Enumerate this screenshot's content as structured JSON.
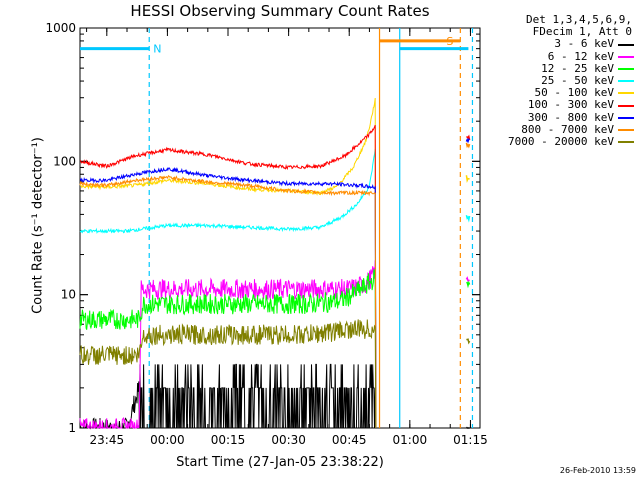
{
  "chart_data": {
    "type": "line",
    "title": "HESSI Observing Summary Count Rates",
    "xlabel": "Start Time (27-Jan-05 23:38:22)",
    "ylabel": "Count Rate (s⁻¹ detector⁻¹)",
    "y_scale": "log",
    "ylim": [
      1,
      1000
    ],
    "xlim_minutes_from_start": [
      0,
      99
    ],
    "y_tick_labels": [
      "1",
      "10",
      "100",
      "1000"
    ],
    "x_tick_labels": [
      "23:45",
      "00:00",
      "00:15",
      "00:30",
      "00:45",
      "01:00",
      "01:15"
    ],
    "legend_header": [
      "Det 1,3,4,5,6,9,",
      "FDecim 1, Att 0"
    ],
    "flags": [
      {
        "label": "N",
        "color": "#00c8ff",
        "start": "23:38:22",
        "end": "23:55:30",
        "level": 700
      },
      {
        "label": "S",
        "color": "#ff8c00",
        "start": "00:52:30",
        "end": "01:12:30",
        "level": 800
      }
    ],
    "vlines": [
      {
        "time": "23:55:30",
        "color": "#00c8ff",
        "style": "dashed"
      },
      {
        "time": "00:52:30",
        "color": "#ff8c00",
        "style": "solid"
      },
      {
        "time": "00:57:30",
        "color": "#00c8ff",
        "style": "solid"
      },
      {
        "time": "01:12:30",
        "color": "#ff8c00",
        "style": "dashed"
      },
      {
        "time": "01:15:30",
        "color": "#00c8ff",
        "style": "dashed"
      }
    ],
    "series": [
      {
        "name": "3 - 6 keV",
        "color": "#000000",
        "times": [
          "23:38:22",
          "23:50",
          "23:53",
          "00:05",
          "00:20",
          "00:35",
          "00:47",
          "00:50",
          "00:51",
          "00:51:30"
        ],
        "values": [
          1,
          1,
          2,
          2,
          2,
          2,
          2,
          2,
          2.5,
          4
        ],
        "after_times": [
          "01:14",
          "01:15"
        ],
        "after_values": [
          1,
          1
        ]
      },
      {
        "name": "6 - 12 keV",
        "color": "#ff00ff",
        "times": [
          "23:38:22",
          "23:53",
          "23:53:30",
          "00:05",
          "00:20",
          "00:35",
          "00:45",
          "00:49",
          "00:51",
          "00:51:30"
        ],
        "values": [
          1,
          1,
          11,
          11,
          11,
          11,
          11,
          12,
          14,
          16
        ],
        "after_times": [
          "01:14",
          "01:15"
        ],
        "after_values": [
          13,
          13
        ]
      },
      {
        "name": "12 - 25 keV",
        "color": "#00ff00",
        "times": [
          "23:38:22",
          "23:45",
          "23:53",
          "23:54",
          "00:05",
          "00:20",
          "00:35",
          "00:43",
          "00:48",
          "00:51",
          "00:51:30"
        ],
        "values": [
          6.5,
          6.5,
          6.5,
          8.5,
          8.5,
          8.5,
          8.5,
          9,
          11,
          13,
          14
        ],
        "after_times": [
          "01:14",
          "01:15"
        ],
        "after_values": [
          12,
          12
        ]
      },
      {
        "name": "25 - 50 keV",
        "color": "#00ffff",
        "times": [
          "23:38:22",
          "23:45",
          "23:50",
          "00:00",
          "00:10",
          "00:20",
          "00:30",
          "00:38",
          "00:43",
          "00:47",
          "00:50",
          "00:51",
          "00:51:30"
        ],
        "values": [
          30,
          30,
          30,
          33,
          33,
          32,
          31,
          32,
          38,
          48,
          65,
          100,
          130
        ],
        "after_times": [
          "01:14",
          "01:15"
        ],
        "after_values": [
          38,
          38
        ]
      },
      {
        "name": "50 - 100 keV",
        "color": "#ffd700",
        "times": [
          "23:38:22",
          "23:45",
          "23:52",
          "00:00",
          "00:10",
          "00:20",
          "00:30",
          "00:38",
          "00:42",
          "00:46",
          "00:49",
          "00:50",
          "00:51",
          "00:51:30"
        ],
        "values": [
          65,
          64,
          66,
          72,
          68,
          62,
          60,
          58,
          65,
          90,
          140,
          180,
          250,
          300
        ],
        "after_times": [
          "01:14",
          "01:15"
        ],
        "after_values": [
          75,
          75
        ]
      },
      {
        "name": "100 - 300 keV",
        "color": "#ff0000",
        "times": [
          "23:38:22",
          "23:45",
          "23:52",
          "00:00",
          "00:10",
          "00:20",
          "00:30",
          "00:38",
          "00:44",
          "00:48",
          "00:50",
          "00:51",
          "00:51:30"
        ],
        "values": [
          100,
          92,
          110,
          122,
          112,
          96,
          90,
          92,
          110,
          140,
          160,
          175,
          190
        ],
        "after_times": [
          "01:14",
          "01:15"
        ],
        "after_values": [
          150,
          150
        ]
      },
      {
        "name": "300 - 800 keV",
        "color": "#0000ff",
        "times": [
          "23:38:22",
          "23:45",
          "23:52",
          "00:00",
          "00:10",
          "00:20",
          "00:30",
          "00:40",
          "00:47",
          "00:51",
          "00:51:30"
        ],
        "values": [
          72,
          72,
          80,
          88,
          78,
          72,
          68,
          68,
          66,
          64,
          64
        ],
        "after_times": [
          "01:14",
          "01:15"
        ],
        "after_values": [
          145,
          145
        ]
      },
      {
        "name": "800 - 7000 keV",
        "color": "#ff8c00",
        "times": [
          "23:38:22",
          "23:45",
          "23:52",
          "00:00",
          "00:10",
          "00:20",
          "00:30",
          "00:40",
          "00:47",
          "00:51",
          "00:51:30"
        ],
        "values": [
          68,
          66,
          72,
          76,
          70,
          66,
          60,
          58,
          58,
          58,
          58
        ],
        "after_times": [
          "01:14",
          "01:15"
        ],
        "after_values": [
          135,
          135
        ]
      },
      {
        "name": "7000 - 20000 keV",
        "color": "#808000",
        "times": [
          "23:38:22",
          "23:53",
          "23:54",
          "00:05",
          "00:20",
          "00:35",
          "00:45",
          "00:51",
          "00:51:30"
        ],
        "values": [
          3.5,
          3.5,
          5,
          5,
          5,
          5,
          5.5,
          5.5,
          6
        ],
        "after_times": [
          "01:14",
          "01:15"
        ],
        "after_values": [
          4.5,
          4.5
        ]
      }
    ]
  },
  "footer": "26-Feb-2010 13:59"
}
